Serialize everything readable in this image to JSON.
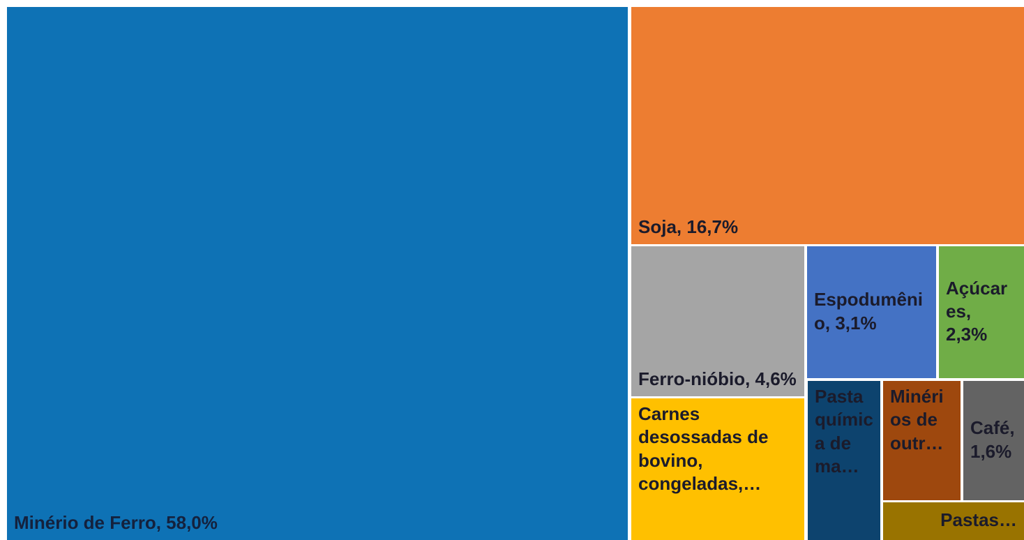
{
  "chart_data": {
    "type": "treemap",
    "labels": [
      "Minério de Ferro, 58,0%",
      "Soja, 16,7%",
      "Ferro-nióbio, 4,6%",
      "Carnes desossadas de bovino, congeladas,…",
      "Espodumênio, 3,1%",
      "Açúcares, 2,3%",
      "Pasta química de ma…",
      "Minérios de outr…",
      "Café, 1,6%",
      "Pastas…"
    ],
    "values": [
      58.0,
      16.7,
      4.6,
      4.3,
      3.1,
      2.3,
      2.0,
      1.7,
      1.6,
      0.9
    ],
    "colors": [
      "#0e72b5",
      "#ed7d31",
      "#a5a5a5",
      "#ffc000",
      "#4472c4",
      "#70ad47",
      "#0d436e",
      "#9e480e",
      "#636363",
      "#997300"
    ]
  }
}
